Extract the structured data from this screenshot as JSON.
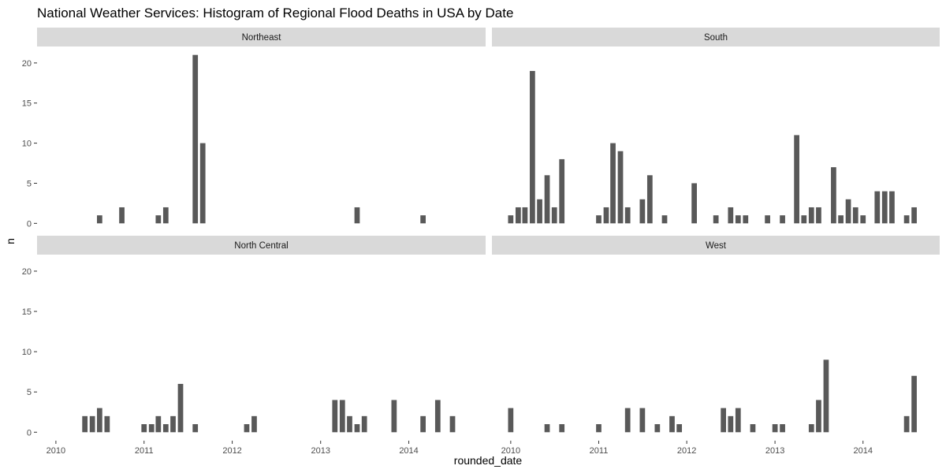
{
  "chart_data": {
    "type": "bar",
    "title": "National Weather Services: Histogram of Regional Flood Deaths in USA by Date",
    "xlabel": "rounded_date",
    "ylabel": "n",
    "ylim": [
      0,
      21
    ],
    "yticks": [
      0,
      5,
      10,
      15,
      20
    ],
    "xticks": [
      "2010",
      "2011",
      "2012",
      "2013",
      "2014"
    ],
    "x_domain": [
      "2009-10-15",
      "2014-11-15"
    ],
    "bar_width_days": 22,
    "grid": false,
    "facet_layout": "2x2",
    "colors": {
      "bar": "#595959",
      "strip": "#d9d9d9",
      "tick": "#333333"
    },
    "panels": [
      {
        "name": "Northeast",
        "bars": [
          {
            "x": "2010-07-01",
            "y": 1
          },
          {
            "x": "2010-10-01",
            "y": 2
          },
          {
            "x": "2011-03-01",
            "y": 1
          },
          {
            "x": "2011-04-01",
            "y": 2
          },
          {
            "x": "2011-08-01",
            "y": 21
          },
          {
            "x": "2011-09-01",
            "y": 10
          },
          {
            "x": "2013-06-01",
            "y": 2
          },
          {
            "x": "2014-03-01",
            "y": 1
          }
        ]
      },
      {
        "name": "South",
        "bars": [
          {
            "x": "2010-01-01",
            "y": 1
          },
          {
            "x": "2010-02-01",
            "y": 2
          },
          {
            "x": "2010-03-01",
            "y": 2
          },
          {
            "x": "2010-04-01",
            "y": 19
          },
          {
            "x": "2010-05-01",
            "y": 3
          },
          {
            "x": "2010-06-01",
            "y": 6
          },
          {
            "x": "2010-07-01",
            "y": 2
          },
          {
            "x": "2010-08-01",
            "y": 8
          },
          {
            "x": "2011-01-01",
            "y": 1
          },
          {
            "x": "2011-02-01",
            "y": 2
          },
          {
            "x": "2011-03-01",
            "y": 10
          },
          {
            "x": "2011-04-01",
            "y": 9
          },
          {
            "x": "2011-05-01",
            "y": 2
          },
          {
            "x": "2011-07-01",
            "y": 3
          },
          {
            "x": "2011-08-01",
            "y": 6
          },
          {
            "x": "2011-10-01",
            "y": 1
          },
          {
            "x": "2012-02-01",
            "y": 5
          },
          {
            "x": "2012-05-01",
            "y": 1
          },
          {
            "x": "2012-07-01",
            "y": 2
          },
          {
            "x": "2012-08-01",
            "y": 1
          },
          {
            "x": "2012-09-01",
            "y": 1
          },
          {
            "x": "2012-12-01",
            "y": 1
          },
          {
            "x": "2013-02-01",
            "y": 1
          },
          {
            "x": "2013-04-01",
            "y": 11
          },
          {
            "x": "2013-05-01",
            "y": 1
          },
          {
            "x": "2013-06-01",
            "y": 2
          },
          {
            "x": "2013-07-01",
            "y": 2
          },
          {
            "x": "2013-09-01",
            "y": 7
          },
          {
            "x": "2013-10-01",
            "y": 1
          },
          {
            "x": "2013-11-01",
            "y": 3
          },
          {
            "x": "2013-12-01",
            "y": 2
          },
          {
            "x": "2014-01-01",
            "y": 1
          },
          {
            "x": "2014-03-01",
            "y": 4
          },
          {
            "x": "2014-04-01",
            "y": 4
          },
          {
            "x": "2014-05-01",
            "y": 4
          },
          {
            "x": "2014-07-01",
            "y": 1
          },
          {
            "x": "2014-08-01",
            "y": 2
          }
        ]
      },
      {
        "name": "North Central",
        "bars": [
          {
            "x": "2010-05-01",
            "y": 2
          },
          {
            "x": "2010-06-01",
            "y": 2
          },
          {
            "x": "2010-07-01",
            "y": 3
          },
          {
            "x": "2010-08-01",
            "y": 2
          },
          {
            "x": "2011-01-01",
            "y": 1
          },
          {
            "x": "2011-02-01",
            "y": 1
          },
          {
            "x": "2011-03-01",
            "y": 2
          },
          {
            "x": "2011-04-01",
            "y": 1
          },
          {
            "x": "2011-05-01",
            "y": 2
          },
          {
            "x": "2011-06-01",
            "y": 6
          },
          {
            "x": "2011-08-01",
            "y": 1
          },
          {
            "x": "2012-03-01",
            "y": 1
          },
          {
            "x": "2012-04-01",
            "y": 2
          },
          {
            "x": "2013-03-01",
            "y": 4
          },
          {
            "x": "2013-04-01",
            "y": 4
          },
          {
            "x": "2013-05-01",
            "y": 2
          },
          {
            "x": "2013-06-01",
            "y": 1
          },
          {
            "x": "2013-07-01",
            "y": 2
          },
          {
            "x": "2013-11-01",
            "y": 4
          },
          {
            "x": "2014-03-01",
            "y": 2
          },
          {
            "x": "2014-05-01",
            "y": 4
          },
          {
            "x": "2014-07-01",
            "y": 2
          }
        ]
      },
      {
        "name": "West",
        "bars": [
          {
            "x": "2010-01-01",
            "y": 3
          },
          {
            "x": "2010-06-01",
            "y": 1
          },
          {
            "x": "2010-08-01",
            "y": 1
          },
          {
            "x": "2011-01-01",
            "y": 1
          },
          {
            "x": "2011-05-01",
            "y": 3
          },
          {
            "x": "2011-07-01",
            "y": 3
          },
          {
            "x": "2011-09-01",
            "y": 1
          },
          {
            "x": "2011-11-01",
            "y": 2
          },
          {
            "x": "2011-12-01",
            "y": 1
          },
          {
            "x": "2012-06-01",
            "y": 3
          },
          {
            "x": "2012-07-01",
            "y": 2
          },
          {
            "x": "2012-08-01",
            "y": 3
          },
          {
            "x": "2012-10-01",
            "y": 1
          },
          {
            "x": "2013-01-01",
            "y": 1
          },
          {
            "x": "2013-02-01",
            "y": 1
          },
          {
            "x": "2013-06-01",
            "y": 1
          },
          {
            "x": "2013-07-01",
            "y": 4
          },
          {
            "x": "2013-08-01",
            "y": 9
          },
          {
            "x": "2014-07-01",
            "y": 2
          },
          {
            "x": "2014-08-01",
            "y": 7
          }
        ]
      }
    ]
  }
}
